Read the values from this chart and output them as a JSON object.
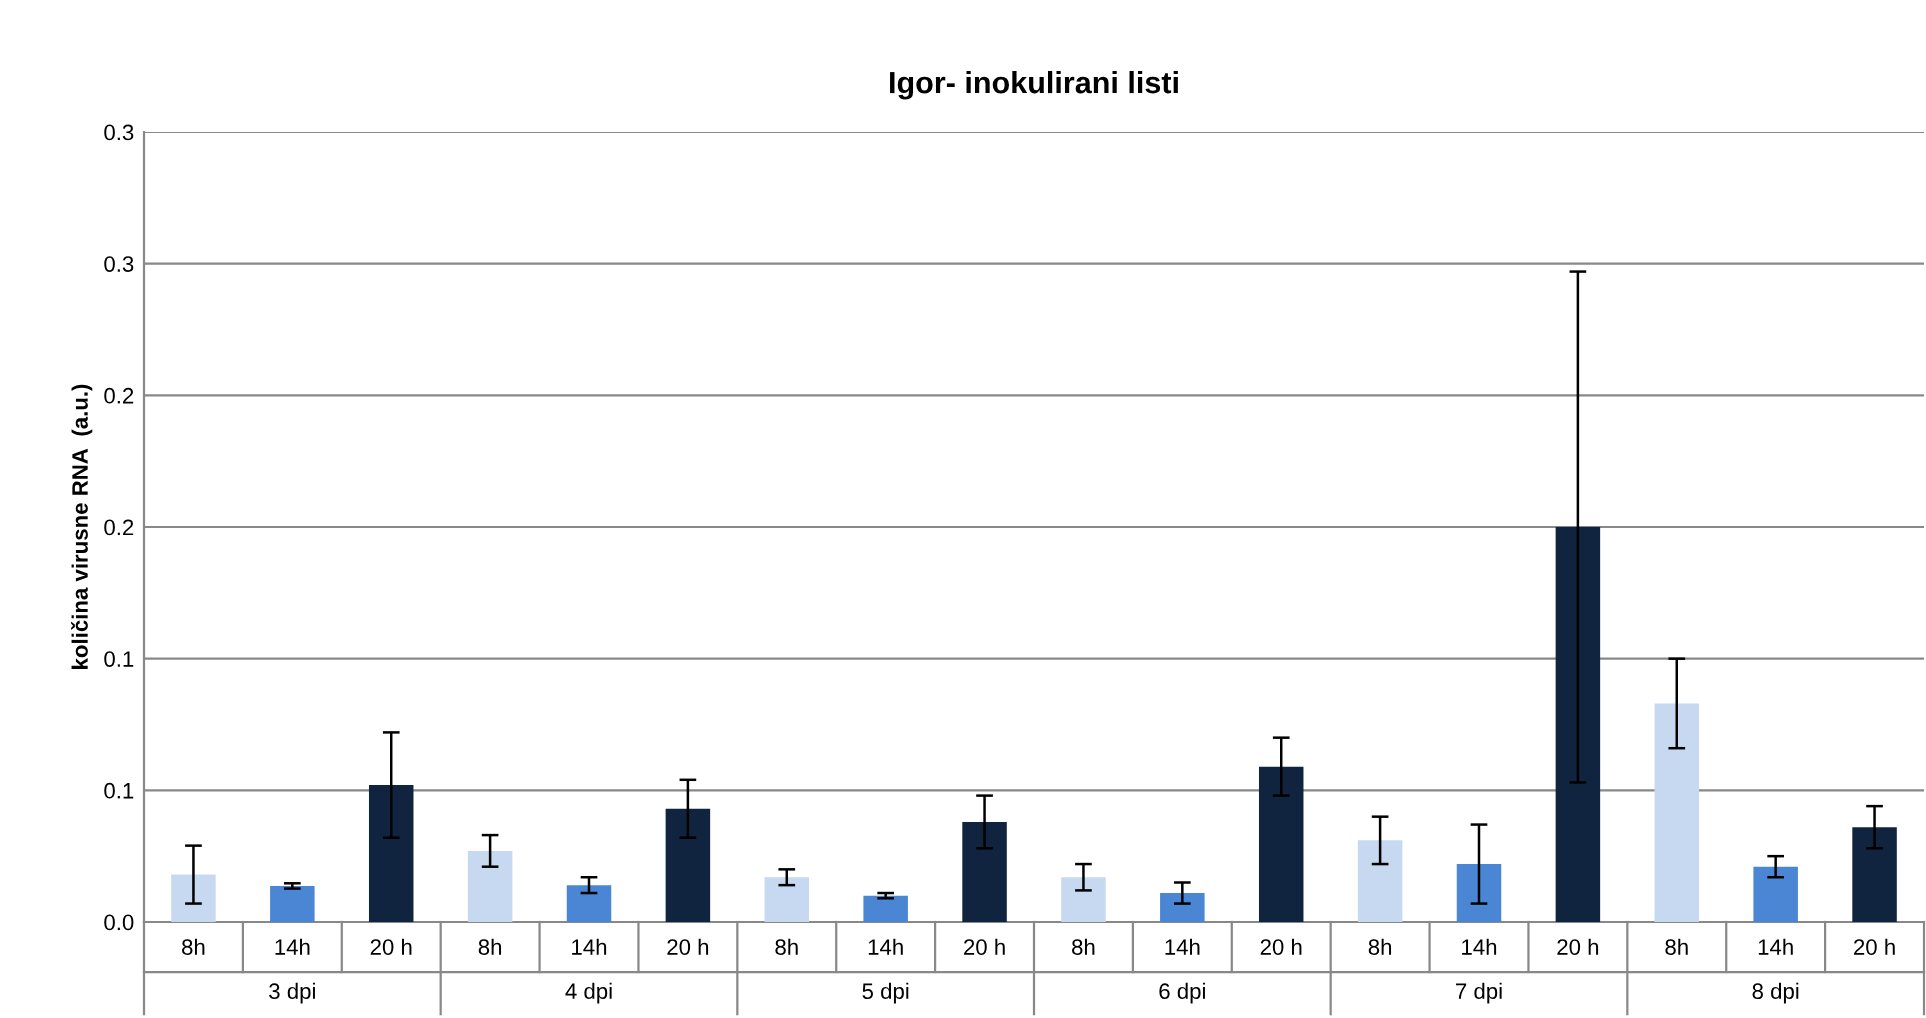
{
  "chart_data": {
    "type": "bar",
    "title": "Igor- inokulirani listi",
    "ylabel": "količina virusne RNA  (a.u.)",
    "categories": [
      "8h",
      "14h",
      "20 h",
      "8h",
      "14h",
      "20 h",
      "8h",
      "14h",
      "20 h",
      "8h",
      "14h",
      "20 h",
      "8h",
      "14h",
      "20 h",
      "8h",
      "14h",
      "20 h"
    ],
    "values": [
      0.018,
      0.0137,
      0.052,
      0.027,
      0.014,
      0.043,
      0.017,
      0.01,
      0.038,
      0.017,
      0.011,
      0.059,
      0.031,
      0.022,
      0.15,
      0.083,
      0.021,
      0.036
    ],
    "errors": [
      0.011,
      0.001,
      0.02,
      0.006,
      0.003,
      0.011,
      0.003,
      0.001,
      0.01,
      0.005,
      0.004,
      0.011,
      0.009,
      0.015,
      0.097,
      0.017,
      0.004,
      0.008
    ],
    "colors": [
      "#c6d9f1",
      "#4a86d4",
      "#10243f",
      "#c6d9f1",
      "#4a86d4",
      "#10243f",
      "#c6d9f1",
      "#4a86d4",
      "#10243f",
      "#c6d9f1",
      "#4a86d4",
      "#10243f",
      "#c6d9f1",
      "#4a86d4",
      "#10243f",
      "#c6d9f1",
      "#4a86d4",
      "#10243f"
    ],
    "annotations": [
      "3 dpi",
      "4 dpi",
      "5 dpi",
      "6 dpi",
      "7 dpi",
      "8 dpi"
    ],
    "ylim": [
      0,
      0.3
    ],
    "yticks": [
      {
        "value": 0,
        "label": "0.0"
      },
      {
        "value": 0.05,
        "label": "0.1"
      },
      {
        "value": 0.1,
        "label": "0.1"
      },
      {
        "value": 0.15,
        "label": "0.2"
      },
      {
        "value": 0.2,
        "label": "0.2"
      },
      {
        "value": 0.25,
        "label": "0.3"
      },
      {
        "value": 0.3,
        "label": "0.3"
      }
    ],
    "grid": "y",
    "legend": false
  }
}
